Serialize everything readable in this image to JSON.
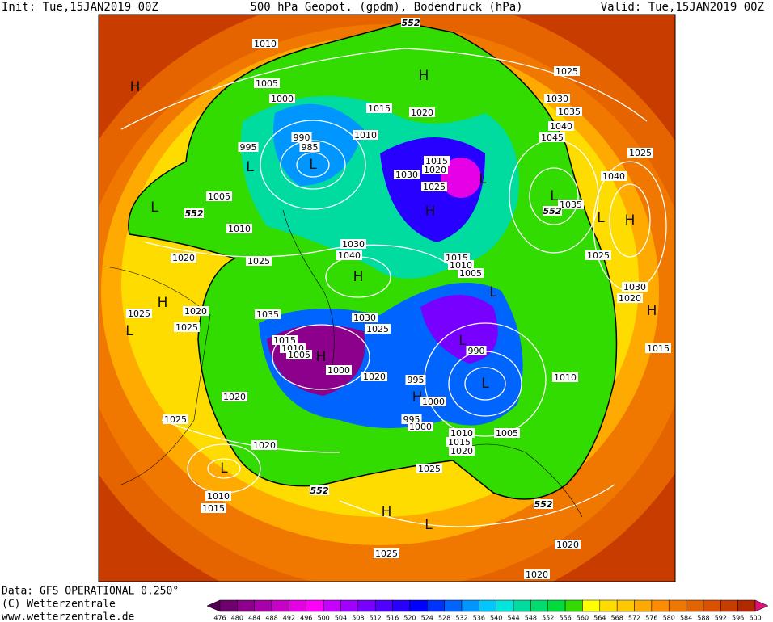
{
  "header": {
    "init": "Init: Tue,15JAN2019 00Z",
    "title": "500 hPa Geopot. (gpdm), Bodendruck (hPa)",
    "valid": "Valid: Tue,15JAN2019 00Z"
  },
  "footer": {
    "data": "Data: GFS OPERATIONAL 0.250°",
    "copyright": "(C) Wetterzentrale",
    "url": "www.wetterzentrale.de"
  },
  "colorbar": {
    "ticks": [
      476,
      480,
      484,
      488,
      492,
      496,
      500,
      504,
      508,
      512,
      516,
      520,
      524,
      528,
      532,
      536,
      540,
      544,
      548,
      552,
      556,
      560,
      564,
      568,
      572,
      576,
      580,
      584,
      588,
      592,
      596,
      600
    ],
    "colors": [
      "#500050",
      "#6e006e",
      "#8c008c",
      "#aa00aa",
      "#c800c8",
      "#e600e6",
      "#ff00ff",
      "#c800ff",
      "#a000ff",
      "#7800ff",
      "#5000ff",
      "#2800ff",
      "#0000ff",
      "#0032ff",
      "#0064ff",
      "#0096ff",
      "#00c8ff",
      "#00e6dc",
      "#00dca0",
      "#00dc6e",
      "#00dc3c",
      "#32dc00",
      "#ffff00",
      "#ffdc00",
      "#ffc800",
      "#ffaa00",
      "#ff8c00",
      "#f07800",
      "#e66400",
      "#dc5000",
      "#c83c00",
      "#b42800",
      "#dc1478"
    ]
  },
  "map": {
    "pressure_centers": [
      "H",
      "H",
      "L",
      "L",
      "L",
      "L",
      "H",
      "L",
      "L",
      "H",
      "H",
      "H",
      "L",
      "L",
      "L",
      "H",
      "L",
      "H",
      "H",
      "L",
      "H",
      "L"
    ],
    "isobar_labels": [
      "1010",
      "1005",
      "1000",
      "1015",
      "1020",
      "990",
      "985",
      "1010",
      "995",
      "1015",
      "1020",
      "1030",
      "1025",
      "1005",
      "1025",
      "1030",
      "1035",
      "1040",
      "1045",
      "1025",
      "1040",
      "1035",
      "1010",
      "1020",
      "1025",
      "1030",
      "1040",
      "1015",
      "1010",
      "1005",
      "1025",
      "1030",
      "1020",
      "1025",
      "1020",
      "1025",
      "1035",
      "1030",
      "1025",
      "1015",
      "1010",
      "1005",
      "1000",
      "1020",
      "995",
      "990",
      "1010",
      "1015",
      "1000",
      "995",
      "1000",
      "1020",
      "1025",
      "1010",
      "1015",
      "1020",
      "1005",
      "1020",
      "1025",
      "1010",
      "1015",
      "1025",
      "1020",
      "1020"
    ],
    "contour_labels": [
      "552",
      "552",
      "552",
      "552",
      "552"
    ]
  }
}
